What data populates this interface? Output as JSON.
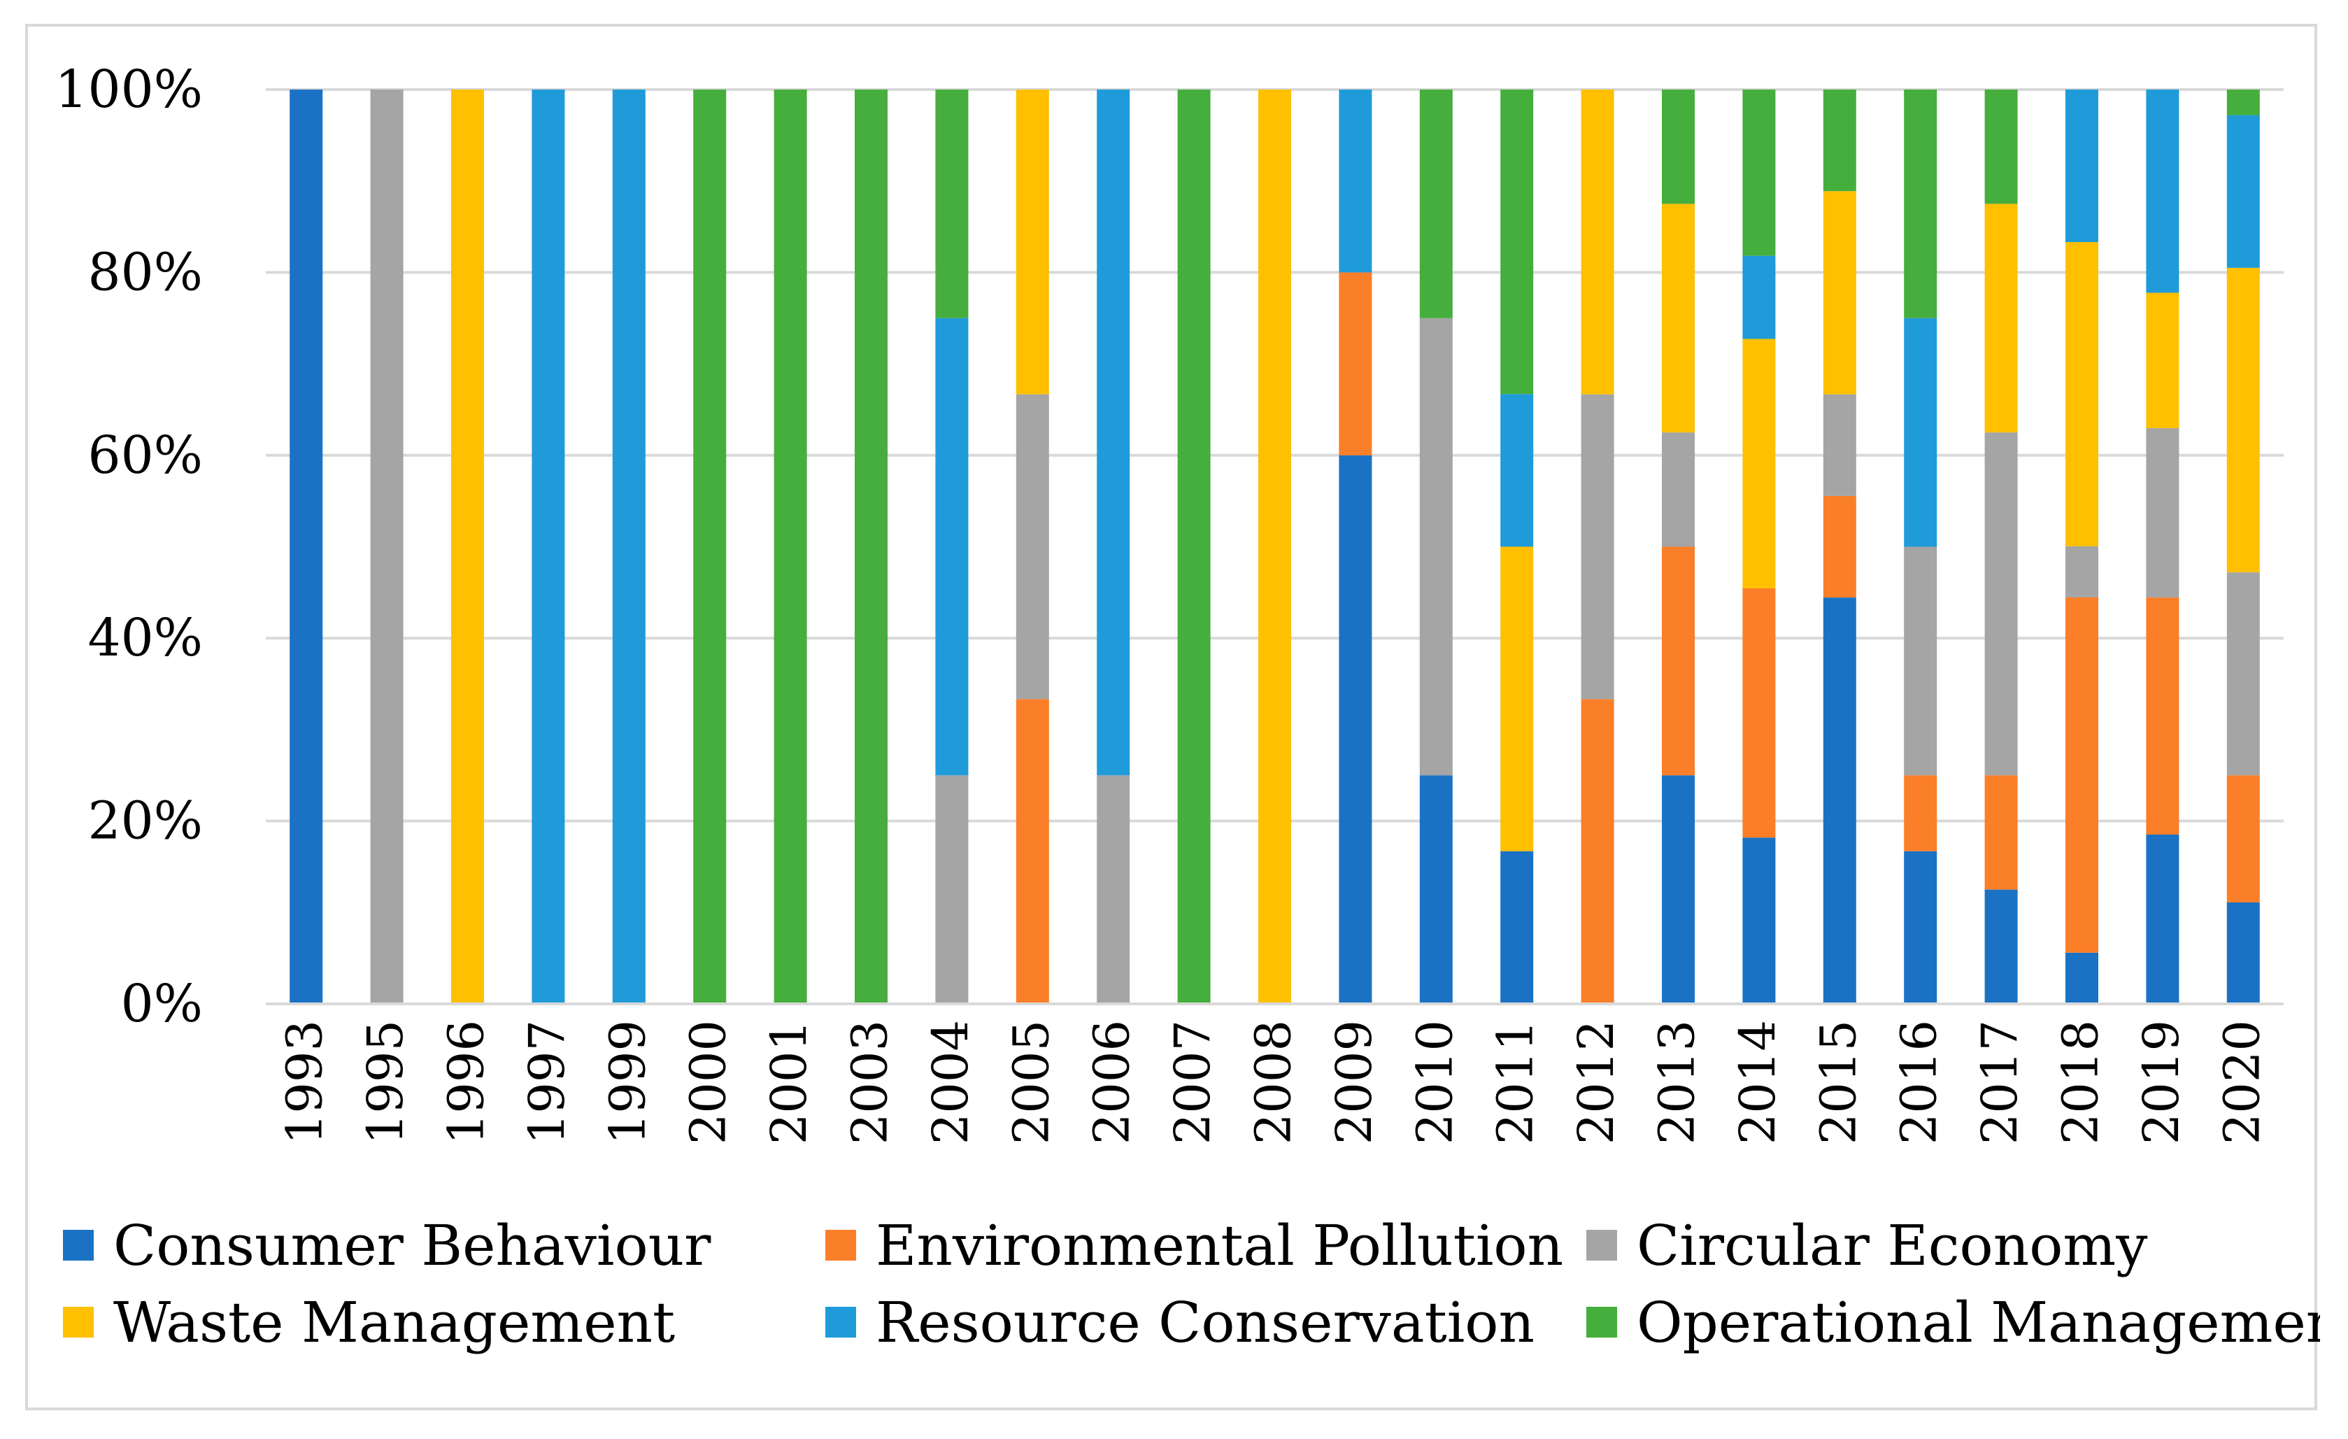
{
  "chart_data": {
    "type": "bar",
    "stacked": true,
    "normalized": true,
    "title": "",
    "xlabel": "",
    "ylabel": "",
    "ylim": [
      0,
      100
    ],
    "y_ticks": [
      "0%",
      "20%",
      "40%",
      "60%",
      "80%",
      "100%"
    ],
    "grid": true,
    "legend_position": "bottom",
    "categories": [
      "1993",
      "1995",
      "1996",
      "1997",
      "1999",
      "2000",
      "2001",
      "2003",
      "2004",
      "2005",
      "2006",
      "2007",
      "2008",
      "2009",
      "2010",
      "2011",
      "2012",
      "2013",
      "2014",
      "2015",
      "2016",
      "2017",
      "2018",
      "2019",
      "2020"
    ],
    "series": [
      {
        "name": "Consumer Behaviour",
        "color": "#1b72c4",
        "values": [
          100,
          0,
          0,
          0,
          0,
          0,
          0,
          0,
          0,
          0,
          0,
          0,
          0,
          60,
          25,
          16.7,
          0,
          25,
          18.2,
          44.4,
          16.7,
          12.5,
          5.6,
          18.5,
          11.1
        ]
      },
      {
        "name": "Environmental Pollution",
        "color": "#fb7e28",
        "values": [
          0,
          0,
          0,
          0,
          0,
          0,
          0,
          0,
          0,
          33.3,
          0,
          0,
          0,
          20,
          0,
          0,
          33.3,
          25,
          27.3,
          11.1,
          8.3,
          12.5,
          38.9,
          25.9,
          13.9
        ]
      },
      {
        "name": "Circular Economy",
        "color": "#a5a5a5",
        "values": [
          0,
          100,
          0,
          0,
          0,
          0,
          0,
          0,
          25,
          33.3,
          25,
          0,
          0,
          0,
          50,
          0,
          33.3,
          12.5,
          0,
          11.1,
          25,
          37.5,
          5.6,
          18.5,
          22.2
        ]
      },
      {
        "name": "Waste Management",
        "color": "#fec000",
        "values": [
          0,
          0,
          100,
          0,
          0,
          0,
          0,
          0,
          0,
          33.3,
          0,
          0,
          100,
          0,
          0,
          33.3,
          33.3,
          25,
          27.3,
          22.2,
          0,
          25,
          33.3,
          14.8,
          33.3
        ]
      },
      {
        "name": "Resource Conservation",
        "color": "#1f9bd9",
        "values": [
          0,
          0,
          0,
          100,
          100,
          0,
          0,
          0,
          50,
          0,
          75,
          0,
          0,
          20,
          0,
          16.7,
          0,
          0,
          9.1,
          0,
          25,
          0,
          16.7,
          22.2,
          16.7
        ]
      },
      {
        "name": "Operational Management",
        "color": "#45ae3c",
        "values": [
          0,
          0,
          0,
          0,
          0,
          100,
          100,
          100,
          25,
          0,
          0,
          100,
          0,
          0,
          25,
          33.3,
          0,
          12.5,
          18.2,
          11.1,
          25,
          12.5,
          0,
          0,
          2.8
        ]
      }
    ]
  }
}
